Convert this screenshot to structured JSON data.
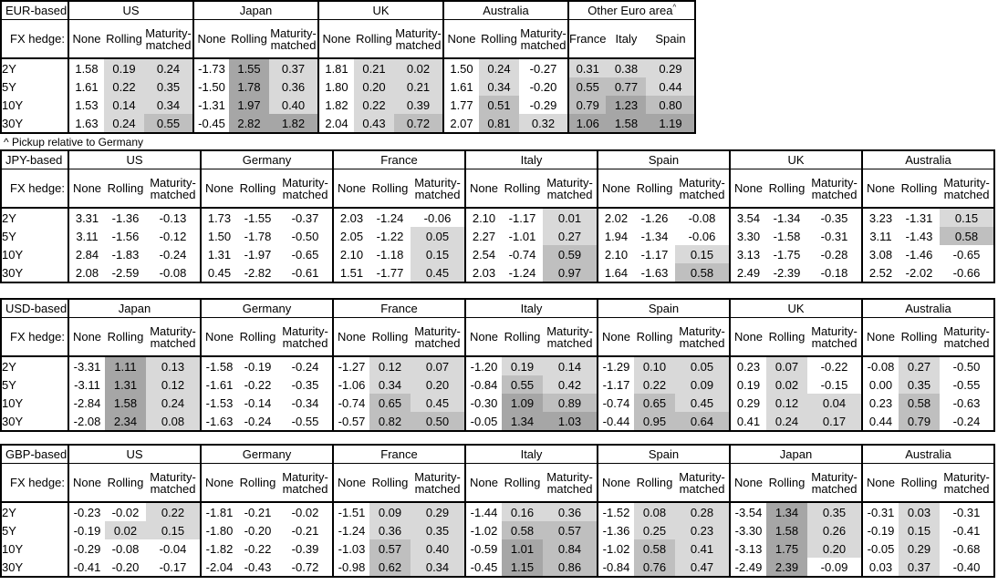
{
  "footnote": "^ Pickup relative to Germany",
  "fx_hedge_label": "FX hedge:",
  "maturity_labels": [
    "2Y",
    "5Y",
    "10Y",
    "30Y"
  ],
  "hedge_columns": [
    "None",
    "Rolling",
    "Maturity-matched"
  ],
  "shade_colors": {
    "low": "#d9d9d9",
    "mid": "#bfbfbf",
    "high": "#a6a6a6"
  },
  "shade_thresholds": {
    "low_gt": 0,
    "mid_ge": 0.5,
    "high_ge": 1.0
  },
  "tables": [
    {
      "base_label": "EUR-based",
      "groups": [
        {
          "name": "US",
          "pickup_cols": [
            1,
            2
          ],
          "values": [
            [
              "1.58",
              "0.19",
              "0.24"
            ],
            [
              "1.61",
              "0.22",
              "0.35"
            ],
            [
              "1.53",
              "0.14",
              "0.34"
            ],
            [
              "1.63",
              "0.24",
              "0.55"
            ]
          ]
        },
        {
          "name": "Japan",
          "pickup_cols": [
            1,
            2
          ],
          "values": [
            [
              "-1.73",
              "1.55",
              "0.37"
            ],
            [
              "-1.50",
              "1.78",
              "0.36"
            ],
            [
              "-1.31",
              "1.97",
              "0.40"
            ],
            [
              "-0.45",
              "2.82",
              "1.82"
            ]
          ]
        },
        {
          "name": "UK",
          "pickup_cols": [
            1,
            2
          ],
          "values": [
            [
              "1.81",
              "0.21",
              "0.02"
            ],
            [
              "1.80",
              "0.20",
              "0.21"
            ],
            [
              "1.82",
              "0.22",
              "0.39"
            ],
            [
              "2.04",
              "0.43",
              "0.72"
            ]
          ]
        },
        {
          "name": "Australia",
          "pickup_cols": [
            1,
            2
          ],
          "values": [
            [
              "1.50",
              "0.24",
              "-0.27"
            ],
            [
              "1.61",
              "0.34",
              "-0.20"
            ],
            [
              "1.77",
              "0.51",
              "-0.29"
            ],
            [
              "2.07",
              "0.81",
              "0.32"
            ]
          ]
        },
        {
          "name": "Other Euro area",
          "sup": "^",
          "columns": [
            "France",
            "Italy",
            "Spain"
          ],
          "pickup_cols": [
            0,
            1,
            2
          ],
          "values": [
            [
              "0.31",
              "0.38",
              "0.29"
            ],
            [
              "0.55",
              "0.77",
              "0.44"
            ],
            [
              "0.79",
              "1.23",
              "0.80"
            ],
            [
              "1.06",
              "1.58",
              "1.19"
            ]
          ]
        }
      ]
    },
    {
      "base_label": "JPY-based",
      "groups": [
        {
          "name": "US",
          "pickup_cols": [
            1,
            2
          ],
          "values": [
            [
              "3.31",
              "-1.36",
              "-0.13"
            ],
            [
              "3.11",
              "-1.56",
              "-0.12"
            ],
            [
              "2.84",
              "-1.83",
              "-0.24"
            ],
            [
              "2.08",
              "-2.59",
              "-0.08"
            ]
          ]
        },
        {
          "name": "Germany",
          "pickup_cols": [
            1,
            2
          ],
          "values": [
            [
              "1.73",
              "-1.55",
              "-0.37"
            ],
            [
              "1.50",
              "-1.78",
              "-0.50"
            ],
            [
              "1.31",
              "-1.97",
              "-0.65"
            ],
            [
              "0.45",
              "-2.82",
              "-0.61"
            ]
          ]
        },
        {
          "name": "France",
          "pickup_cols": [
            1,
            2
          ],
          "values": [
            [
              "2.03",
              "-1.24",
              "-0.06"
            ],
            [
              "2.05",
              "-1.22",
              "0.05"
            ],
            [
              "2.10",
              "-1.18",
              "0.15"
            ],
            [
              "1.51",
              "-1.77",
              "0.45"
            ]
          ]
        },
        {
          "name": "Italy",
          "pickup_cols": [
            1,
            2
          ],
          "values": [
            [
              "2.10",
              "-1.17",
              "0.01"
            ],
            [
              "2.27",
              "-1.01",
              "0.27"
            ],
            [
              "2.54",
              "-0.74",
              "0.59"
            ],
            [
              "2.03",
              "-1.24",
              "0.97"
            ]
          ]
        },
        {
          "name": "Spain",
          "pickup_cols": [
            1,
            2
          ],
          "values": [
            [
              "2.02",
              "-1.26",
              "-0.08"
            ],
            [
              "1.94",
              "-1.34",
              "-0.06"
            ],
            [
              "2.10",
              "-1.17",
              "0.15"
            ],
            [
              "1.64",
              "-1.63",
              "0.58"
            ]
          ]
        },
        {
          "name": "UK",
          "pickup_cols": [
            1,
            2
          ],
          "values": [
            [
              "3.54",
              "-1.34",
              "-0.35"
            ],
            [
              "3.30",
              "-1.58",
              "-0.31"
            ],
            [
              "3.13",
              "-1.75",
              "-0.28"
            ],
            [
              "2.49",
              "-2.39",
              "-0.18"
            ]
          ]
        },
        {
          "name": "Australia",
          "pickup_cols": [
            1,
            2
          ],
          "values": [
            [
              "3.23",
              "-1.31",
              "0.15"
            ],
            [
              "3.11",
              "-1.43",
              "0.58"
            ],
            [
              "3.08",
              "-1.46",
              "-0.65"
            ],
            [
              "2.52",
              "-2.02",
              "-0.66"
            ]
          ]
        }
      ]
    },
    {
      "base_label": "USD-based",
      "groups": [
        {
          "name": "Japan",
          "pickup_cols": [
            1,
            2
          ],
          "values": [
            [
              "-3.31",
              "1.11",
              "0.13"
            ],
            [
              "-3.11",
              "1.31",
              "0.12"
            ],
            [
              "-2.84",
              "1.58",
              "0.24"
            ],
            [
              "-2.08",
              "2.34",
              "0.08"
            ]
          ]
        },
        {
          "name": "Germany",
          "pickup_cols": [
            1,
            2
          ],
          "values": [
            [
              "-1.58",
              "-0.19",
              "-0.24"
            ],
            [
              "-1.61",
              "-0.22",
              "-0.35"
            ],
            [
              "-1.53",
              "-0.14",
              "-0.34"
            ],
            [
              "-1.63",
              "-0.24",
              "-0.55"
            ]
          ]
        },
        {
          "name": "France",
          "pickup_cols": [
            1,
            2
          ],
          "values": [
            [
              "-1.27",
              "0.12",
              "0.07"
            ],
            [
              "-1.06",
              "0.34",
              "0.20"
            ],
            [
              "-0.74",
              "0.65",
              "0.45"
            ],
            [
              "-0.57",
              "0.82",
              "0.50"
            ]
          ]
        },
        {
          "name": "Italy",
          "pickup_cols": [
            1,
            2
          ],
          "values": [
            [
              "-1.20",
              "0.19",
              "0.14"
            ],
            [
              "-0.84",
              "0.55",
              "0.42"
            ],
            [
              "-0.30",
              "1.09",
              "0.89"
            ],
            [
              "-0.05",
              "1.34",
              "1.03"
            ]
          ]
        },
        {
          "name": "Spain",
          "pickup_cols": [
            1,
            2
          ],
          "values": [
            [
              "-1.29",
              "0.10",
              "0.05"
            ],
            [
              "-1.17",
              "0.22",
              "0.09"
            ],
            [
              "-0.74",
              "0.65",
              "0.45"
            ],
            [
              "-0.44",
              "0.95",
              "0.64"
            ]
          ]
        },
        {
          "name": "UK",
          "pickup_cols": [
            1,
            2
          ],
          "values": [
            [
              "0.23",
              "0.07",
              "-0.22"
            ],
            [
              "0.19",
              "0.02",
              "-0.15"
            ],
            [
              "0.29",
              "0.12",
              "0.04"
            ],
            [
              "0.41",
              "0.24",
              "0.17"
            ]
          ]
        },
        {
          "name": "Australia",
          "pickup_cols": [
            1,
            2
          ],
          "values": [
            [
              "-0.08",
              "0.27",
              "-0.50"
            ],
            [
              "0.00",
              "0.35",
              "-0.55"
            ],
            [
              "0.23",
              "0.58",
              "-0.63"
            ],
            [
              "0.44",
              "0.79",
              "-0.24"
            ]
          ]
        }
      ]
    },
    {
      "base_label": "GBP-based",
      "groups": [
        {
          "name": "US",
          "pickup_cols": [
            1,
            2
          ],
          "values": [
            [
              "-0.23",
              "-0.02",
              "0.22"
            ],
            [
              "-0.19",
              "0.02",
              "0.15"
            ],
            [
              "-0.29",
              "-0.08",
              "-0.04"
            ],
            [
              "-0.41",
              "-0.20",
              "-0.17"
            ]
          ]
        },
        {
          "name": "Germany",
          "pickup_cols": [
            1,
            2
          ],
          "values": [
            [
              "-1.81",
              "-0.21",
              "-0.02"
            ],
            [
              "-1.80",
              "-0.20",
              "-0.21"
            ],
            [
              "-1.82",
              "-0.22",
              "-0.39"
            ],
            [
              "-2.04",
              "-0.43",
              "-0.72"
            ]
          ]
        },
        {
          "name": "France",
          "pickup_cols": [
            1,
            2
          ],
          "values": [
            [
              "-1.51",
              "0.09",
              "0.29"
            ],
            [
              "-1.24",
              "0.36",
              "0.35"
            ],
            [
              "-1.03",
              "0.57",
              "0.40"
            ],
            [
              "-0.98",
              "0.62",
              "0.34"
            ]
          ]
        },
        {
          "name": "Italy",
          "pickup_cols": [
            1,
            2
          ],
          "values": [
            [
              "-1.44",
              "0.16",
              "0.36"
            ],
            [
              "-1.02",
              "0.58",
              "0.57"
            ],
            [
              "-0.59",
              "1.01",
              "0.84"
            ],
            [
              "-0.45",
              "1.15",
              "0.86"
            ]
          ]
        },
        {
          "name": "Spain",
          "pickup_cols": [
            1,
            2
          ],
          "values": [
            [
              "-1.52",
              "0.08",
              "0.28"
            ],
            [
              "-1.36",
              "0.25",
              "0.23"
            ],
            [
              "-1.02",
              "0.58",
              "0.41"
            ],
            [
              "-0.84",
              "0.76",
              "0.47"
            ]
          ]
        },
        {
          "name": "Japan",
          "pickup_cols": [
            1,
            2
          ],
          "values": [
            [
              "-3.54",
              "1.34",
              "0.35"
            ],
            [
              "-3.30",
              "1.58",
              "0.26"
            ],
            [
              "-3.13",
              "1.75",
              "0.20"
            ],
            [
              "-2.49",
              "2.39",
              "-0.09"
            ]
          ]
        },
        {
          "name": "Australia",
          "pickup_cols": [
            1,
            2
          ],
          "values": [
            [
              "-0.31",
              "0.03",
              "-0.31"
            ],
            [
              "-0.19",
              "0.15",
              "-0.41"
            ],
            [
              "-0.05",
              "0.29",
              "-0.68"
            ],
            [
              "0.03",
              "0.37",
              "-0.40"
            ]
          ]
        }
      ]
    }
  ]
}
